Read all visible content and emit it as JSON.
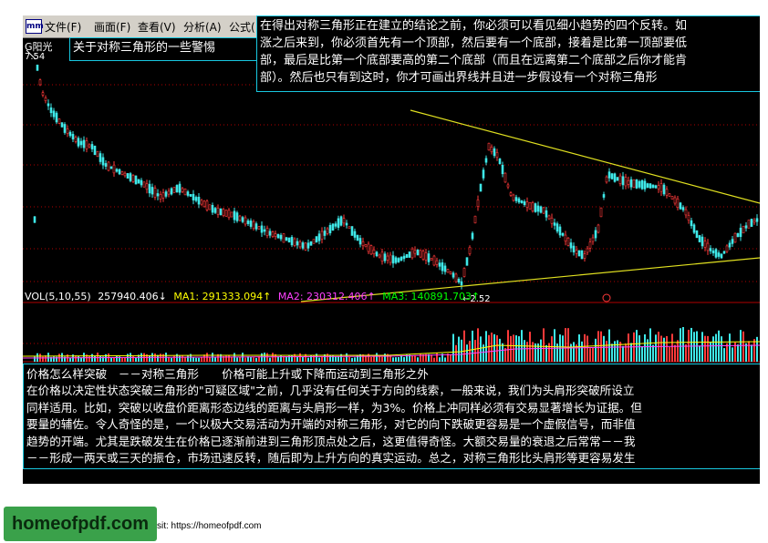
{
  "menu": {
    "icon_label": "mm",
    "items": [
      "文件(F)",
      "画面(F)",
      "查看(V)",
      "分析(A)",
      "公式("
    ]
  },
  "stock": {
    "name": "G阳光",
    "high_price": "7.54",
    "low_price": "2.52"
  },
  "tooltip_title": "关于对称三角形的一些警惕",
  "tooltip_body": [
    "在得出对称三角形正在建立的结论之前，你必须可以看见细小趋势的四个反转。如",
    "涨之后来到，你必须首先有一个顶部，然后要有一个底部，接着是比第一顶部要低",
    "部，最后是比第一个底部要高的第二个底部（而且在远离第二个底部之后你才能肯",
    "部）。然后也只有到这时，你才可画出界线并且进一步假设有一个对称三角形"
  ],
  "volume": {
    "header": "VOL(5,10,55)",
    "value": "257940.406↓",
    "ma1": "MA1: 291333.094↑",
    "ma2": "MA2: 230312.406↑",
    "ma3": "MA3: 140891.703↑"
  },
  "text_panel": [
    "价格怎么样突破　－－对称三角形　　价格可能上升或下降而运动到三角形之外",
    "在价格以决定性状态突破三角形的\"可疑区域\"之前，几乎没有任何关于方向的线索，一般来说，我们为头肩形突破所设立",
    "同样适用。比如，突破以收盘价距离形态边线的距离与头肩形一样，为3%。价格上冲同样必须有交易显著增长为证据。但",
    "要量的辅佐。令人奇怪的是，一个以极大交易活动为开端的对称三角形，对它的向下跌破更容易是一个虚假信号，而非值",
    "趋势的开端。尤其是跌破发生在价格已逐渐前进到三角形顶点处之后，这更值得奇怪。大额交易量的衰退之后常常－－我",
    "－－形成一两天或三天的振仓，市场迅速反转，随后即为上升方向的真实运动。总之，对称三角形比头肩形等更容易发生"
  ],
  "logo": "homeofpdf.com",
  "visit": "sit: https://homeofpdf.com",
  "colors": {
    "up": "#ff3a3a",
    "down": "#3ee8e8",
    "trendline": "#e0e020",
    "gridline": "#b00000",
    "ma1": "#ffff00",
    "ma2": "#ff40ff",
    "ma3": "#00ff00",
    "border": "#18c8e0"
  }
}
